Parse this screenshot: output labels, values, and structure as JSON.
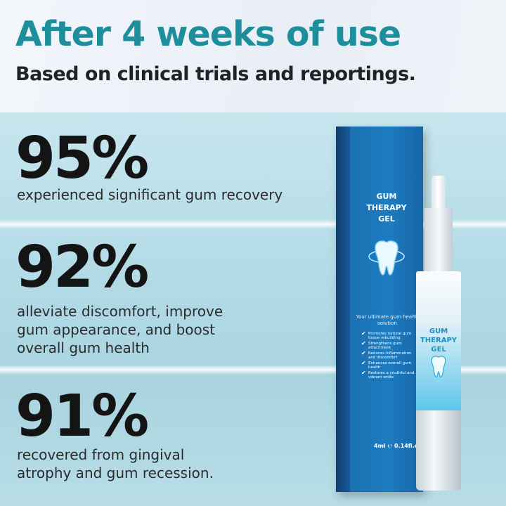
{
  "header": {
    "title": "After 4 weeks of use",
    "subtitle": "Based on clinical trials and reportings."
  },
  "stats": [
    {
      "value": "95%",
      "text": "experienced significant gum recovery"
    },
    {
      "value": "92%",
      "text": " alleviate discomfort, improve gum appearance, and boost overall gum health"
    },
    {
      "value": "91%",
      "text": "recovered from  gingival atrophy and gum recession."
    }
  ],
  "product": {
    "name_line1": "GUM",
    "name_line2": "THERAPY",
    "name_line3": "GEL",
    "tagline": "Your ultimate gum health solution",
    "benefits": [
      "Promotes natural gum tissue rebuilding",
      "Strengthens gum attachment",
      "Reduces inflammation and discomfort",
      "Enhances overall gum health",
      "Restores a youthful and vibrant smile"
    ],
    "volume": "4ml ℮ 0.14fl.oz",
    "icon": "tooth-icon",
    "colors": {
      "title": "#1d8f9c",
      "box": "#1a6fb0"
    }
  }
}
